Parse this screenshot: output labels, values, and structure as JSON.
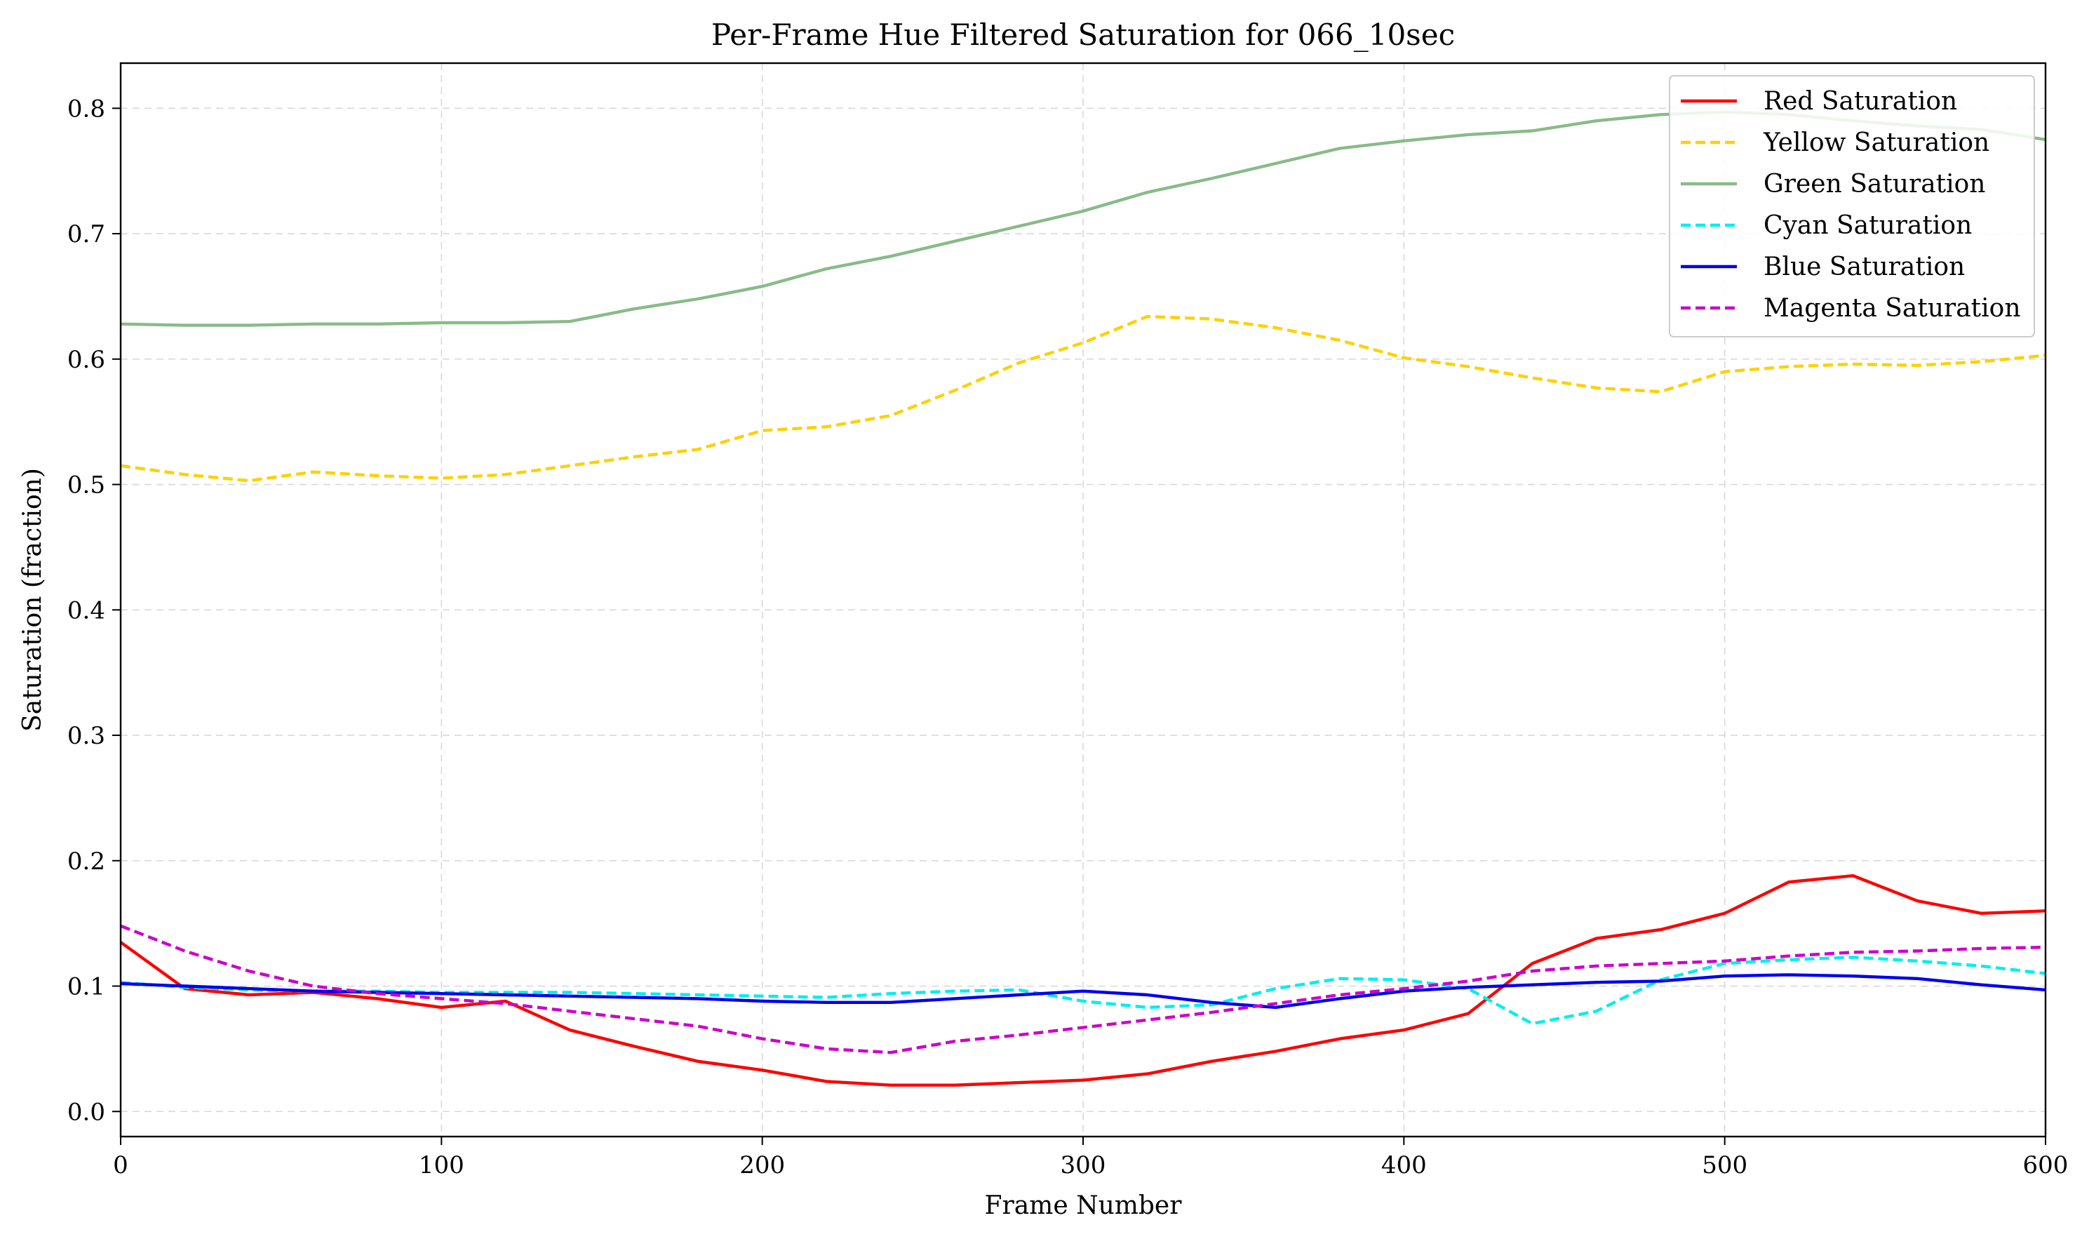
{
  "chart_data": {
    "type": "line",
    "title": "Per-Frame Hue Filtered Saturation for 066_10sec",
    "xlabel": "Frame Number",
    "ylabel": "Saturation (fraction)",
    "xlim": [
      0,
      600
    ],
    "ylim": [
      -0.02,
      0.836
    ],
    "xticks": [
      0,
      100,
      200,
      300,
      400,
      500,
      600
    ],
    "yticks": [
      0.0,
      0.1,
      0.2,
      0.3,
      0.4,
      0.5,
      0.6,
      0.7,
      0.8
    ],
    "xtick_labels": [
      "0",
      "100",
      "200",
      "300",
      "400",
      "500",
      "600"
    ],
    "ytick_labels": [
      "0.0",
      "0.1",
      "0.2",
      "0.3",
      "0.4",
      "0.5",
      "0.6",
      "0.7",
      "0.8"
    ],
    "grid": true,
    "legend_position": "top-right",
    "x": [
      0,
      20,
      40,
      60,
      80,
      100,
      120,
      140,
      160,
      180,
      200,
      220,
      240,
      260,
      280,
      300,
      320,
      340,
      360,
      380,
      400,
      420,
      440,
      460,
      480,
      500,
      520,
      540,
      560,
      580,
      600
    ],
    "series": [
      {
        "name": "Red Saturation",
        "color": "#ff0000",
        "dash": "solid",
        "values": [
          0.135,
          0.098,
          0.093,
          0.095,
          0.09,
          0.083,
          0.088,
          0.065,
          0.052,
          0.04,
          0.033,
          0.024,
          0.021,
          0.021,
          0.023,
          0.025,
          0.03,
          0.04,
          0.048,
          0.058,
          0.065,
          0.078,
          0.118,
          0.138,
          0.145,
          0.158,
          0.183,
          0.188,
          0.168,
          0.158,
          0.16
        ]
      },
      {
        "name": "Yellow Saturation",
        "color": "#ffd000",
        "dash": "dashed",
        "values": [
          0.515,
          0.508,
          0.503,
          0.51,
          0.507,
          0.505,
          0.508,
          0.515,
          0.522,
          0.528,
          0.543,
          0.546,
          0.555,
          0.575,
          0.597,
          0.613,
          0.634,
          0.632,
          0.625,
          0.615,
          0.601,
          0.594,
          0.585,
          0.577,
          0.574,
          0.59,
          0.594,
          0.596,
          0.595,
          0.598,
          0.603
        ]
      },
      {
        "name": "Green Saturation",
        "color": "#88bb88",
        "dash": "solid",
        "values": [
          0.628,
          0.627,
          0.627,
          0.628,
          0.628,
          0.629,
          0.629,
          0.63,
          0.64,
          0.648,
          0.658,
          0.672,
          0.682,
          0.694,
          0.706,
          0.718,
          0.733,
          0.744,
          0.756,
          0.768,
          0.774,
          0.779,
          0.782,
          0.79,
          0.795,
          0.797,
          0.795,
          0.79,
          0.786,
          0.783,
          0.775
        ]
      },
      {
        "name": "Cyan Saturation",
        "color": "#00eeee",
        "dash": "dashed",
        "values": [
          0.103,
          0.099,
          0.097,
          0.096,
          0.096,
          0.095,
          0.095,
          0.095,
          0.094,
          0.093,
          0.092,
          0.091,
          0.094,
          0.096,
          0.097,
          0.088,
          0.083,
          0.085,
          0.098,
          0.106,
          0.105,
          0.098,
          0.07,
          0.08,
          0.105,
          0.118,
          0.121,
          0.123,
          0.12,
          0.116,
          0.11
        ]
      },
      {
        "name": "Blue Saturation",
        "color": "#0000ee",
        "dash": "solid",
        "values": [
          0.102,
          0.1,
          0.098,
          0.096,
          0.095,
          0.094,
          0.093,
          0.092,
          0.091,
          0.09,
          0.088,
          0.087,
          0.087,
          0.09,
          0.093,
          0.096,
          0.093,
          0.087,
          0.083,
          0.09,
          0.096,
          0.099,
          0.101,
          0.103,
          0.104,
          0.108,
          0.109,
          0.108,
          0.106,
          0.101,
          0.097
        ]
      },
      {
        "name": "Magenta Saturation",
        "color": "#cc00cc",
        "dash": "dashed",
        "values": [
          0.148,
          0.128,
          0.112,
          0.1,
          0.094,
          0.09,
          0.086,
          0.08,
          0.074,
          0.068,
          0.058,
          0.05,
          0.047,
          0.056,
          0.061,
          0.067,
          0.073,
          0.079,
          0.086,
          0.093,
          0.098,
          0.104,
          0.112,
          0.116,
          0.118,
          0.12,
          0.124,
          0.127,
          0.128,
          0.13,
          0.131
        ]
      }
    ]
  }
}
